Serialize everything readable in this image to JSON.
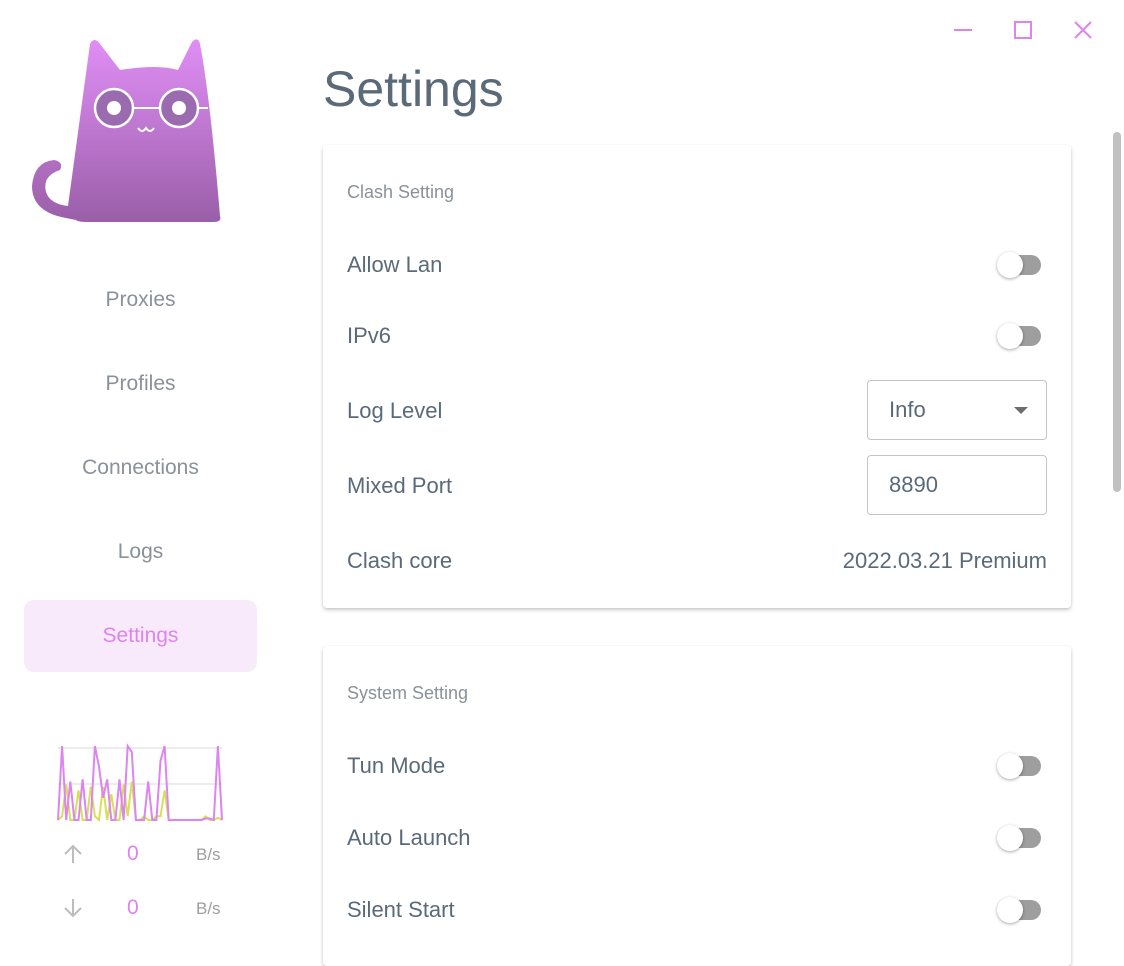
{
  "window": {
    "controls": [
      {
        "name": "minimize"
      },
      {
        "name": "maximize"
      },
      {
        "name": "close"
      }
    ],
    "control_color": "#dd84f0"
  },
  "page_title": "Settings",
  "sidebar": {
    "items": [
      {
        "label": "Proxies"
      },
      {
        "label": "Profiles"
      },
      {
        "label": "Connections"
      },
      {
        "label": "Logs"
      },
      {
        "label": "Settings",
        "active": true
      }
    ],
    "accent": "#dd84f0",
    "traffic": {
      "upload": {
        "value": "0",
        "unit": "B/s",
        "icon": "arrow-up-icon"
      },
      "download": {
        "value": "0",
        "unit": "B/s",
        "icon": "arrow-down-icon"
      },
      "graph": {
        "upload_color": "#dd84f0",
        "download_color": "#d4e157",
        "upload_series": [
          0,
          100,
          0,
          52,
          0,
          0,
          55,
          0,
          0,
          100,
          72,
          30,
          55,
          0,
          0,
          55,
          0,
          100,
          92,
          0,
          0,
          0,
          52,
          0,
          0,
          80,
          100,
          0,
          0,
          0,
          0,
          0,
          0,
          0,
          0,
          0,
          2,
          2,
          0,
          100,
          0
        ],
        "download_series": [
          0,
          5,
          48,
          0,
          0,
          40,
          0,
          0,
          45,
          5,
          0,
          45,
          0,
          35,
          0,
          0,
          48,
          5,
          52,
          0,
          0,
          5,
          0,
          0,
          5,
          5,
          40,
          0,
          0,
          0,
          0,
          0,
          0,
          0,
          0,
          0,
          5,
          0,
          0,
          3,
          0
        ]
      }
    }
  },
  "clash_setting": {
    "title": "Clash Setting",
    "allow_lan": {
      "label": "Allow Lan",
      "enabled": false
    },
    "ipv6": {
      "label": "IPv6",
      "enabled": false
    },
    "log_level": {
      "label": "Log Level",
      "value": "Info"
    },
    "mixed_port": {
      "label": "Mixed Port",
      "value": "8890"
    },
    "clash_core": {
      "label": "Clash core",
      "value": "2022.03.21 Premium"
    }
  },
  "system_setting": {
    "title": "System Setting",
    "tun_mode": {
      "label": "Tun Mode",
      "enabled": false
    },
    "auto_launch": {
      "label": "Auto Launch",
      "enabled": false
    },
    "silent_start": {
      "label": "Silent Start",
      "enabled": false
    }
  }
}
